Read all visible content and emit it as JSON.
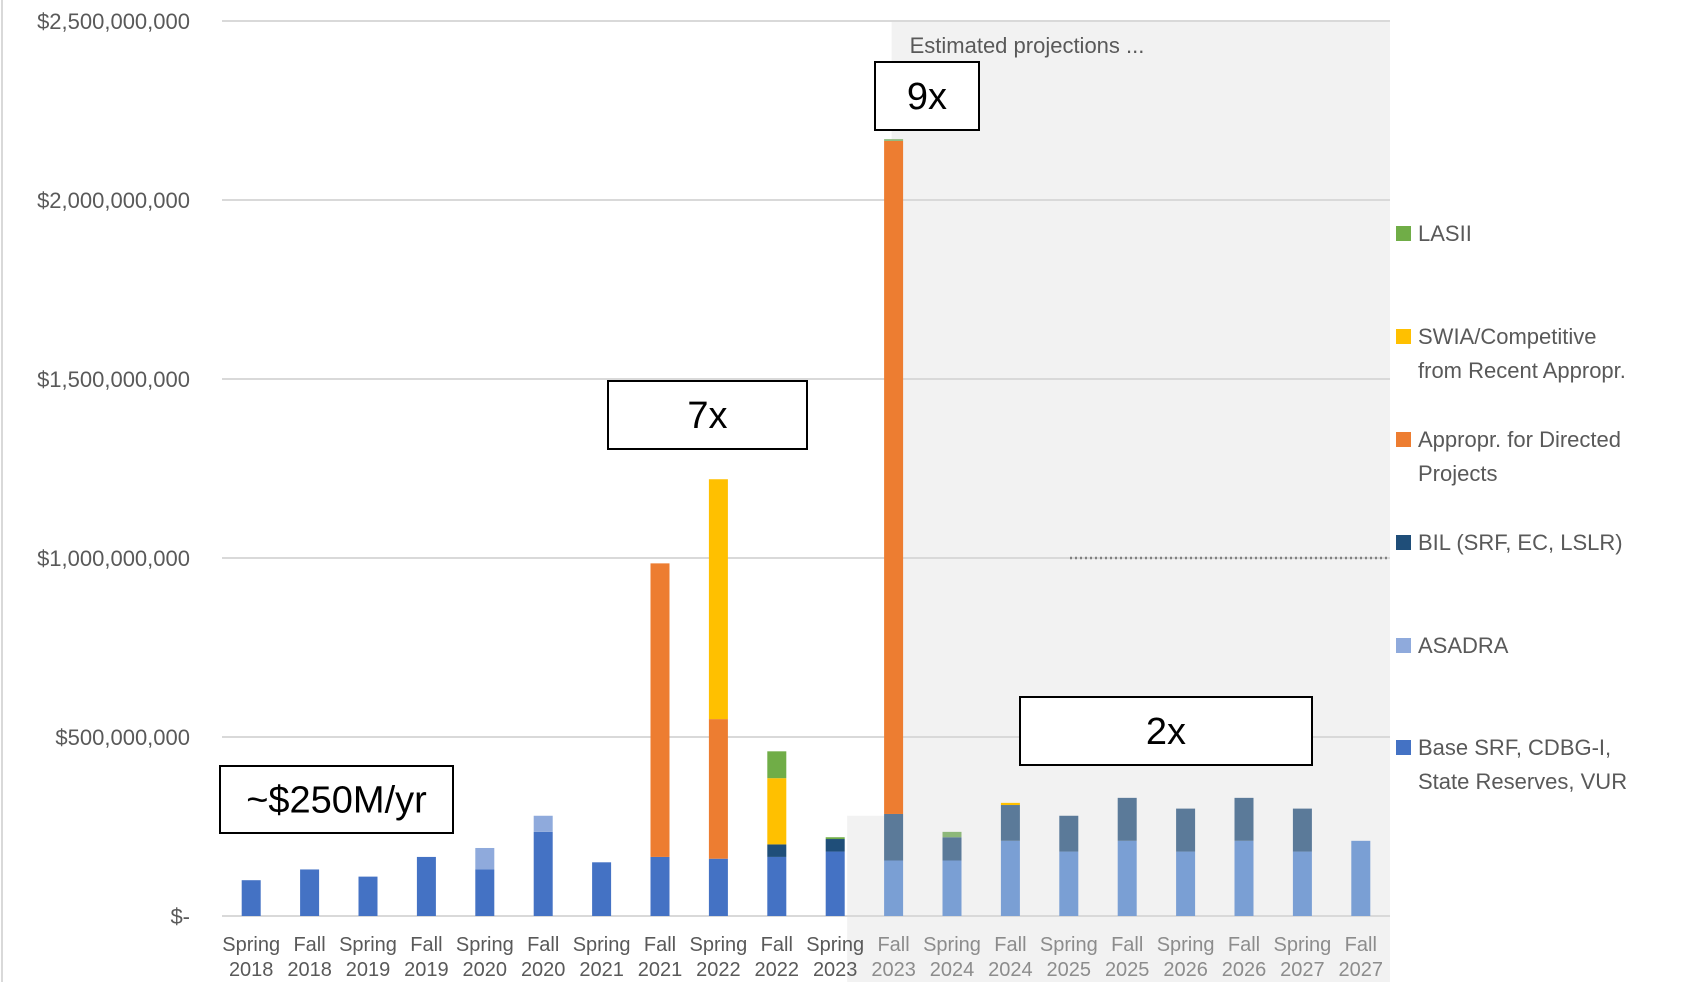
{
  "chart_data": {
    "type": "bar",
    "stacked": true,
    "categories": [
      [
        "Spring",
        "2018"
      ],
      [
        "Fall",
        "2018"
      ],
      [
        "Spring",
        "2019"
      ],
      [
        "Fall",
        "2019"
      ],
      [
        "Spring",
        "2020"
      ],
      [
        "Fall",
        "2020"
      ],
      [
        "Spring",
        "2021"
      ],
      [
        "Fall",
        "2021"
      ],
      [
        "Spring",
        "2022"
      ],
      [
        "Fall",
        "2022"
      ],
      [
        "Spring",
        "2023"
      ],
      [
        "Fall",
        "2023"
      ],
      [
        "Spring",
        "2024"
      ],
      [
        "Fall",
        "2024"
      ],
      [
        "Spring",
        "2025"
      ],
      [
        "Fall",
        "2025"
      ],
      [
        "Spring",
        "2026"
      ],
      [
        "Fall",
        "2026"
      ],
      [
        "Spring",
        "2027"
      ],
      [
        "Fall",
        "2027"
      ]
    ],
    "yticks": [
      "$-",
      "$500,000,000",
      "$1,000,000,000",
      "$1,500,000,000",
      "$2,000,000,000",
      "$2,500,000,000"
    ],
    "ylim": [
      0,
      2500000000
    ],
    "grid": true,
    "legend_position": "right",
    "projection_start_index": 11,
    "projection_label": "Estimated projections ...",
    "projection_background": "#f2f2f2",
    "series": [
      {
        "name": "Base SRF, CDBG-I, State Reserves, VUR",
        "color": "#4472c4",
        "projected_color": "#7a9fd4",
        "values": [
          100000000,
          130000000,
          110000000,
          165000000,
          130000000,
          235000000,
          150000000,
          165000000,
          160000000,
          165000000,
          180000000,
          155000000,
          155000000,
          210000000,
          180000000,
          210000000,
          180000000,
          210000000,
          180000000,
          210000000
        ]
      },
      {
        "name": "ASADRA",
        "color": "#8faadc",
        "projected_color": "#8faadc",
        "values": [
          0,
          0,
          0,
          0,
          60000000,
          45000000,
          0,
          0,
          0,
          0,
          0,
          0,
          0,
          0,
          0,
          0,
          0,
          0,
          0,
          0
        ]
      },
      {
        "name": "BIL (SRF, EC, LSLR)",
        "color": "#1f4e79",
        "projected_color": "#5b7a99",
        "values": [
          0,
          0,
          0,
          0,
          0,
          0,
          0,
          0,
          0,
          35000000,
          35000000,
          130000000,
          65000000,
          100000000,
          100000000,
          120000000,
          120000000,
          120000000,
          120000000,
          0
        ]
      },
      {
        "name": "Appropr. for Directed Projects",
        "color": "#ed7d31",
        "projected_color": "#ed7d31",
        "values": [
          0,
          0,
          0,
          0,
          0,
          0,
          0,
          820000000,
          390000000,
          0,
          0,
          1880000000,
          0,
          0,
          0,
          0,
          0,
          0,
          0,
          0
        ]
      },
      {
        "name": "SWIA/Competitive from Recent Appropr.",
        "color": "#ffc000",
        "projected_color": "#ffc000",
        "values": [
          0,
          0,
          0,
          0,
          0,
          0,
          0,
          0,
          670000000,
          185000000,
          0,
          0,
          0,
          6000000,
          0,
          0,
          0,
          0,
          0,
          0
        ]
      },
      {
        "name": "LASII",
        "color": "#70ad47",
        "projected_color": "#8db87a",
        "values": [
          0,
          0,
          0,
          0,
          0,
          0,
          0,
          0,
          0,
          75000000,
          5000000,
          5000000,
          15000000,
          0,
          0,
          0,
          0,
          0,
          0,
          0
        ]
      }
    ],
    "annotations": [
      {
        "text": "~$250M/yr",
        "category_index": 1.5
      },
      {
        "text": "7x",
        "category_index": 8
      },
      {
        "text": "9x",
        "category_index": 11
      },
      {
        "text": "2x",
        "category_index": 15.5
      }
    ],
    "reference_line": {
      "value": 1000000000,
      "style": "dotted"
    }
  }
}
